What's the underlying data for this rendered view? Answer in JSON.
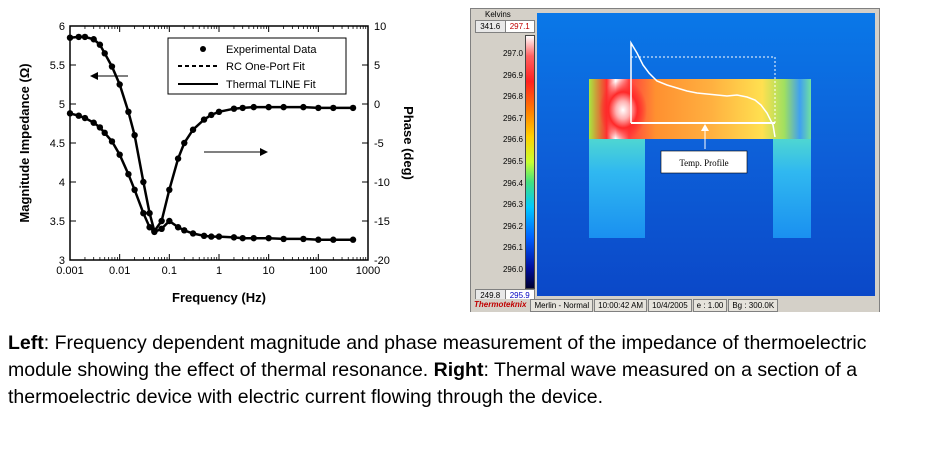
{
  "chart_data": [
    {
      "type": "line",
      "title": "",
      "xlabel": "Frequency (Hz)",
      "ylabel_left": "Magnitude Impedance (Ω)",
      "ylabel_right": "Phase (deg)",
      "x_scale": "log",
      "xlim": [
        0.001,
        1000
      ],
      "ylim_left": [
        3,
        6
      ],
      "ylim_right": [
        -20,
        10
      ],
      "x_ticks": [
        "0.001",
        "0.01",
        "0.1",
        "1",
        "10",
        "100",
        "1000"
      ],
      "y_ticks_left": [
        "3",
        "3.5",
        "4",
        "4.5",
        "5",
        "5.5",
        "6"
      ],
      "y_ticks_right": [
        "-20",
        "-15",
        "-10",
        "-5",
        "0",
        "5",
        "10"
      ],
      "legend": {
        "placement": "top-right",
        "entries": [
          "Experimental Data",
          "RC One-Port Fit",
          "Thermal TLINE Fit"
        ]
      },
      "series": [
        {
          "name": "Experimental Data",
          "axis": "left",
          "quantity": "magnitude",
          "x": [
            0.001,
            0.0015,
            0.002,
            0.003,
            0.004,
            0.005,
            0.007,
            0.01,
            0.015,
            0.02,
            0.03,
            0.04,
            0.05,
            0.07,
            0.1,
            0.15,
            0.2,
            0.3,
            0.5,
            0.7,
            1,
            2,
            3,
            5,
            10,
            20,
            50,
            100,
            200,
            500
          ],
          "y": [
            4.88,
            4.85,
            4.82,
            4.76,
            4.7,
            4.63,
            4.52,
            4.35,
            4.1,
            3.9,
            3.6,
            3.42,
            3.36,
            3.4,
            3.5,
            3.42,
            3.38,
            3.34,
            3.31,
            3.3,
            3.3,
            3.29,
            3.28,
            3.28,
            3.28,
            3.27,
            3.27,
            3.26,
            3.26,
            3.26
          ]
        },
        {
          "name": "Experimental Data",
          "axis": "right",
          "quantity": "phase",
          "x": [
            0.001,
            0.0015,
            0.002,
            0.003,
            0.004,
            0.005,
            0.007,
            0.01,
            0.015,
            0.02,
            0.03,
            0.04,
            0.05,
            0.07,
            0.1,
            0.15,
            0.2,
            0.3,
            0.5,
            0.7,
            1,
            2,
            3,
            5,
            10,
            20,
            50,
            100,
            200,
            500
          ],
          "y": [
            8.5,
            8.6,
            8.6,
            8.3,
            7.6,
            6.5,
            4.8,
            2.5,
            -1,
            -4,
            -10,
            -14,
            -16.3,
            -15,
            -11,
            -7,
            -5,
            -3.3,
            -2,
            -1.4,
            -1,
            -0.6,
            -0.5,
            -0.4,
            -0.4,
            -0.4,
            -0.4,
            -0.5,
            -0.5,
            -0.5
          ]
        }
      ],
      "annotations": [
        {
          "text": "←",
          "meaning": "arrow pointing from upper curve to left axis"
        },
        {
          "text": "→",
          "meaning": "arrow pointing from lower curve to right axis"
        }
      ]
    }
  ],
  "thermal_window": {
    "kelvins_label": "Kelvins",
    "max_left": "341.6",
    "max_right": "297.1",
    "min_left": "249.8",
    "min_right": "295.9",
    "scale_ticks": [
      "297.0",
      "296.9",
      "296.8",
      "296.7",
      "296.6",
      "296.5",
      "296.4",
      "296.3",
      "296.2",
      "296.1",
      "296.0"
    ],
    "profile_label": "Temp. Profile",
    "status": {
      "brand": "Thermoteknix",
      "camera": "Merlin - Normal",
      "time": "10:00:42 AM",
      "date": "10/4/2005",
      "emissivity": "e : 1.00",
      "background": "Bg : 300.0K"
    }
  },
  "caption": {
    "left_label": "Left",
    "left_text": ":  Frequency dependent magnitude and phase measurement of the impedance of thermoelectric module showing the effect of thermal resonance.  ",
    "right_label": "Right",
    "right_text": ": Thermal wave measured on a section of a thermoelectric device with electric current flowing through the device."
  }
}
